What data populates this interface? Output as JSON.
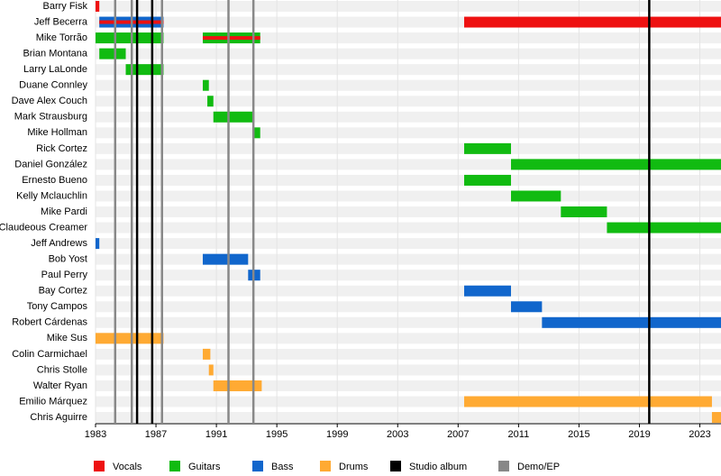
{
  "chart_data": {
    "type": "timeline",
    "categories": [
      "Barry Fisk",
      "Jeff Becerra",
      "Mike Torrão",
      "Brian Montana",
      "Larry LaLonde",
      "Duane Connley",
      "Dave Alex Couch",
      "Mark Strausburg",
      "Mike Hollman",
      "Rick Cortez",
      "Daniel González",
      "Ernesto Bueno",
      "Kelly Mclauchlin",
      "Mike Pardi",
      "Claudeous Creamer",
      "Jeff Andrews",
      "Bob Yost",
      "Paul Perry",
      "Bay Cortez",
      "Tony Campos",
      "Robert Cárdenas",
      "Mike Sus",
      "Colin Carmichael",
      "Chris Stolle",
      "Walter Ryan",
      "Emilio Márquez",
      "Chris Aguirre"
    ],
    "series": [
      {
        "name": "Vocals",
        "color": "#ee1111",
        "values": [
          [
            [
              1983,
              1983.25
            ]
          ],
          [
            [
              1983.25,
              1987.5
            ],
            [
              2007.4,
              2024.4
            ]
          ],
          [
            [
              1990.1,
              1993.9
            ]
          ],
          [],
          [],
          [],
          [],
          [],
          [],
          [],
          [],
          [],
          [],
          [],
          [],
          [],
          [],
          [],
          [],
          [],
          [],
          [],
          [],
          [],
          [],
          [],
          []
        ]
      },
      {
        "name": "Guitars",
        "color": "#11bb11",
        "values": [
          [],
          [],
          [
            [
              1983,
              1987.5
            ],
            [
              1990.1,
              1993.9
            ]
          ],
          [
            [
              1983.25,
              1985
            ]
          ],
          [
            [
              1985,
              1987.5
            ]
          ],
          [
            [
              1990.1,
              1990.5
            ]
          ],
          [
            [
              1990.4,
              1990.8
            ]
          ],
          [
            [
              1990.8,
              1993.5
            ]
          ],
          [
            [
              1993.5,
              1993.9
            ]
          ],
          [
            [
              2007.4,
              2010.5
            ]
          ],
          [
            [
              2010.5,
              2024.4
            ]
          ],
          [
            [
              2007.4,
              2010.5
            ]
          ],
          [
            [
              2010.5,
              2013.8
            ]
          ],
          [
            [
              2013.8,
              2016.85
            ]
          ],
          [
            [
              2016.85,
              2024.4
            ]
          ],
          [],
          [],
          [],
          [],
          [],
          [],
          [],
          [],
          [],
          [],
          [],
          []
        ]
      },
      {
        "name": "Bass",
        "color": "#1166cc",
        "values": [
          [],
          [
            [
              1983.25,
              1987.5
            ]
          ],
          [],
          [],
          [],
          [],
          [],
          [],
          [],
          [],
          [],
          [],
          [],
          [],
          [],
          [
            [
              1983,
              1983.25
            ]
          ],
          [
            [
              1990.1,
              1993.1
            ]
          ],
          [
            [
              1993.1,
              1993.9
            ]
          ],
          [
            [
              2007.4,
              2010.5
            ]
          ],
          [
            [
              2010.5,
              2012.55
            ]
          ],
          [
            [
              2012.55,
              2024.4
            ]
          ],
          [],
          [],
          [],
          [],
          [],
          []
        ]
      },
      {
        "name": "Drums",
        "color": "#ffaa33",
        "values": [
          [],
          [],
          [],
          [],
          [],
          [],
          [],
          [],
          [],
          [],
          [],
          [],
          [],
          [],
          [],
          [],
          [],
          [],
          [],
          [],
          [],
          [
            [
              1983,
              1987.5
            ]
          ],
          [
            [
              1990.1,
              1990.6
            ]
          ],
          [
            [
              1990.5,
              1990.8
            ]
          ],
          [
            [
              1990.8,
              1994
            ]
          ],
          [
            [
              2007.4,
              2023.8
            ]
          ],
          [
            [
              2023.8,
              2024.4
            ]
          ]
        ]
      }
    ],
    "markers": [
      {
        "name": "Studio album",
        "color": "#000000",
        "x": [
          1985.75,
          1986.75,
          2019.65
        ]
      },
      {
        "name": "Demo/EP",
        "color": "#888888",
        "x": [
          1984.3,
          1985.4,
          1987.4,
          1991.8,
          1993.45
        ]
      }
    ],
    "xlim": [
      1983,
      2024.4
    ],
    "xticks": [
      1983,
      1987,
      1991,
      1995,
      1999,
      2003,
      2007,
      2011,
      2015,
      2019,
      2023
    ]
  }
}
